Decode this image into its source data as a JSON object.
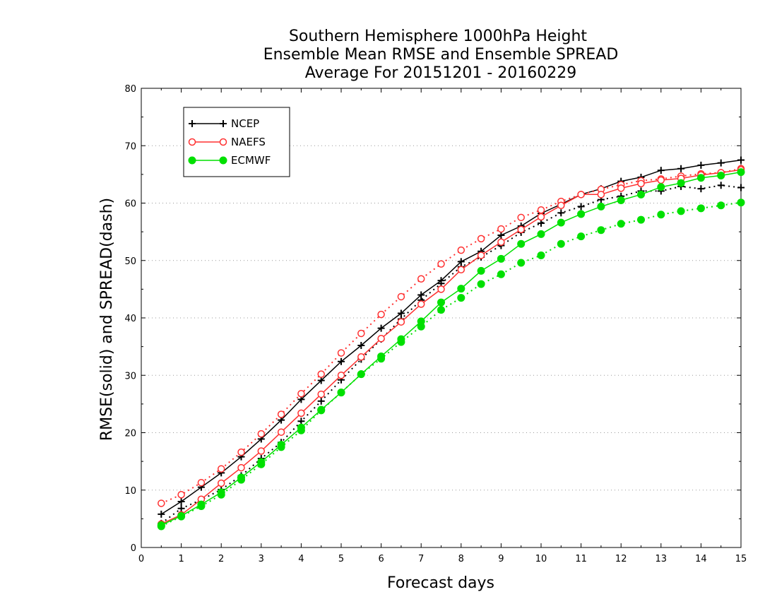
{
  "chart_data": {
    "type": "line",
    "title": [
      "Southern Hemisphere 1000hPa Height",
      "Ensemble Mean RMSE and Ensemble SPREAD",
      "Average For 20151201 - 20160229"
    ],
    "xlabel": "Forecast days",
    "ylabel": "RMSE(solid) and SPREAD(dash)",
    "xlim": [
      0,
      15
    ],
    "ylim": [
      0,
      80
    ],
    "xticks": [
      "0",
      "1",
      "2",
      "3",
      "4",
      "5",
      "6",
      "7",
      "8",
      "9",
      "10",
      "11",
      "12",
      "13",
      "14",
      "15"
    ],
    "yticks": [
      "0",
      "10",
      "20",
      "30",
      "40",
      "50",
      "60",
      "70",
      "80"
    ],
    "grid": "horizontal dotted",
    "legend_position": "top-left",
    "x": [
      0.5,
      1,
      1.5,
      2,
      2.5,
      3,
      3.5,
      4,
      4.5,
      5,
      5.5,
      6,
      6.5,
      7,
      7.5,
      8,
      8.5,
      9,
      9.5,
      10,
      10.5,
      11,
      11.5,
      12,
      12.5,
      13,
      13.5,
      14,
      14.5,
      15
    ],
    "series": [
      {
        "name": "NCEP",
        "color": "#000000",
        "marker": "plus",
        "rmse": [
          5.8,
          8.0,
          10.5,
          13.0,
          15.8,
          18.9,
          22.2,
          25.8,
          29.1,
          32.4,
          35.2,
          38.2,
          40.8,
          44.0,
          46.5,
          49.8,
          51.6,
          54.4,
          56.0,
          58.2,
          59.8,
          61.5,
          62.5,
          63.8,
          64.5,
          65.7,
          66.0,
          66.6,
          67.0,
          67.5
        ],
        "spread": [
          4.2,
          6.8,
          8.3,
          10.1,
          12.5,
          15.5,
          18.3,
          22.0,
          25.5,
          29.2,
          32.8,
          36.3,
          39.8,
          43.1,
          46.0,
          48.9,
          50.6,
          52.6,
          54.9,
          56.5,
          58.3,
          59.4,
          60.6,
          61.2,
          62.1,
          62.1,
          62.9,
          62.5,
          63.1,
          62.7
        ]
      },
      {
        "name": "NAEFS",
        "color": "#ff3030",
        "marker": "open-circle",
        "rmse": [
          4.1,
          5.7,
          8.4,
          11.2,
          13.9,
          16.8,
          20.1,
          23.4,
          26.7,
          30.0,
          33.2,
          36.4,
          39.3,
          42.4,
          45.0,
          48.4,
          50.9,
          53.2,
          55.4,
          57.6,
          59.6,
          61.5,
          61.5,
          62.6,
          63.4,
          64.0,
          64.3,
          64.9,
          65.3,
          65.8
        ],
        "spread": [
          7.7,
          9.2,
          11.3,
          13.7,
          16.6,
          19.8,
          23.2,
          26.8,
          30.2,
          33.9,
          37.3,
          40.6,
          43.7,
          46.8,
          49.4,
          51.8,
          53.8,
          55.5,
          57.5,
          58.8,
          60.3,
          61.5,
          62.4,
          63.2,
          63.9,
          64.2,
          64.7,
          65.1,
          65.3,
          66.0
        ]
      },
      {
        "name": "ECMWF",
        "color": "#00e000",
        "marker": "filled-circle",
        "rmse": [
          3.9,
          5.5,
          7.5,
          9.6,
          12.2,
          14.9,
          17.9,
          20.9,
          24.0,
          27.0,
          30.2,
          33.3,
          36.3,
          39.4,
          42.7,
          45.1,
          48.2,
          50.3,
          52.9,
          54.6,
          56.6,
          58.1,
          59.4,
          60.5,
          61.5,
          62.8,
          63.5,
          64.4,
          64.8,
          65.4
        ],
        "spread": [
          3.7,
          5.4,
          7.2,
          9.2,
          11.8,
          14.5,
          17.5,
          20.4,
          23.9,
          27.0,
          30.2,
          32.9,
          35.8,
          38.5,
          41.4,
          43.5,
          45.9,
          47.6,
          49.6,
          50.9,
          52.9,
          54.2,
          55.3,
          56.4,
          57.1,
          58.0,
          58.6,
          59.1,
          59.6,
          60.1
        ]
      }
    ]
  }
}
